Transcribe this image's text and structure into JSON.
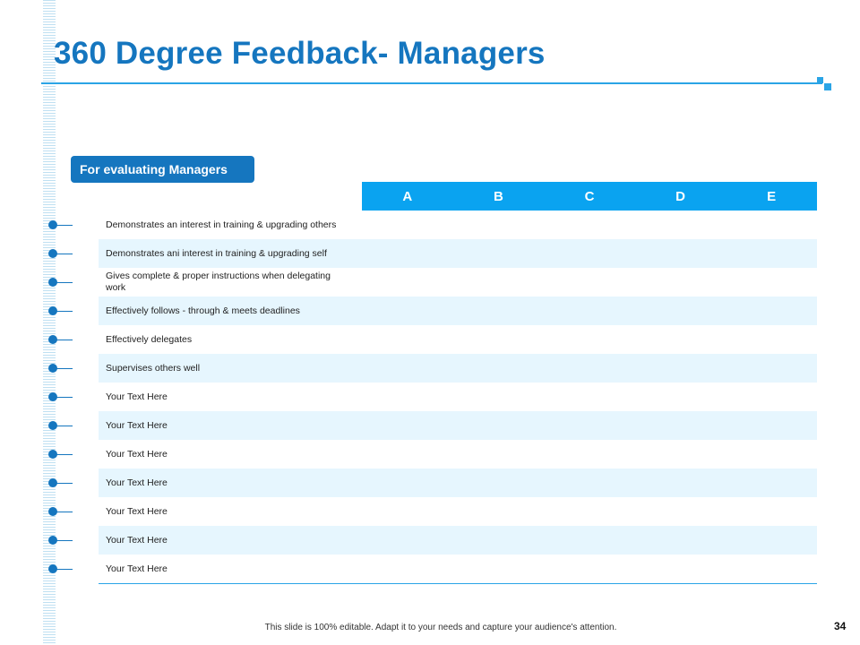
{
  "slide": {
    "title": "360 Degree Feedback- Managers",
    "section_label": "For evaluating Managers",
    "page_number": "34",
    "footer_note": "This slide is 100% editable. Adapt it to your needs and capture your audience's attention."
  },
  "table": {
    "columns": [
      "A",
      "B",
      "C",
      "D",
      "E"
    ],
    "rows": [
      "Demonstrates an interest in training & upgrading others",
      "Demonstrates ani interest in training & upgrading self",
      "Gives complete & proper instructions when delegating work",
      "Effectively follows - through & meets deadlines",
      "Effectively delegates",
      "Supervises others well",
      "Your Text Here",
      "Your Text Here",
      "Your Text Here",
      "Your Text Here",
      "Your Text Here",
      "Your Text Here",
      "Your Text Here"
    ]
  },
  "colors": {
    "title": "#1576bf",
    "header_fill": "#0aa3f0",
    "alt_row_fill": "#e6f6fe",
    "accent_line": "#2aa4e6"
  },
  "icons": {
    "bullet": "dot-connector-icon"
  }
}
